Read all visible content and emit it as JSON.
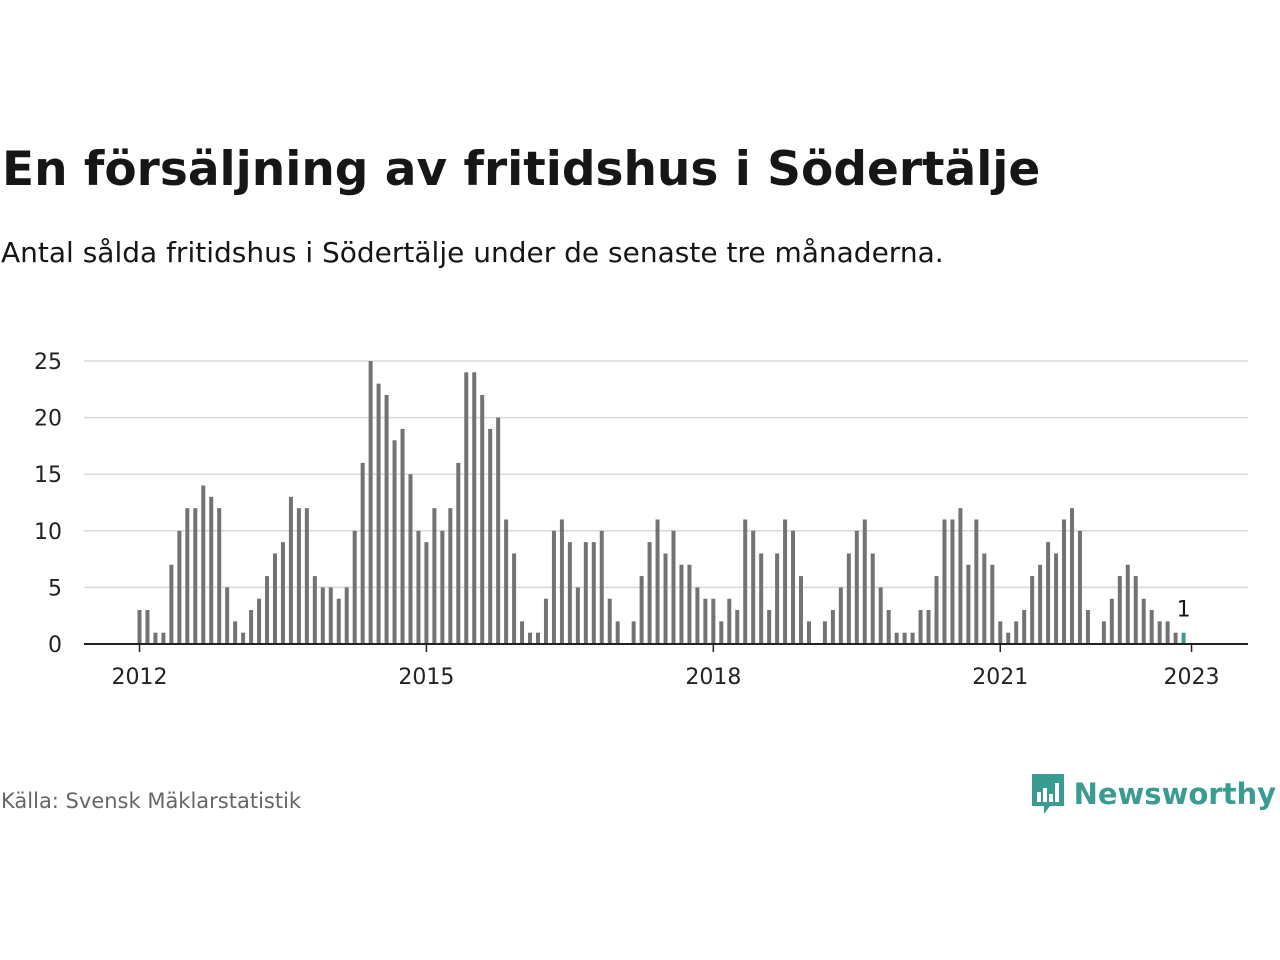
{
  "title": "En försäljning av fritidshus i Södertälje",
  "subtitle": "Antal sålda fritidshus i Södertälje under de senaste tre månaderna.",
  "source": "Källa: Svensk Mäklarstatistik",
  "brand": {
    "name": "Newsworthy",
    "icon": "newsworthy-logo-icon",
    "color": "#3a9b91"
  },
  "chart_data": {
    "type": "bar",
    "title": "",
    "xlabel": "",
    "ylabel": "",
    "ylim": [
      0,
      25
    ],
    "yticks": [
      0,
      5,
      10,
      15,
      20,
      25
    ],
    "x_start": "2012-01",
    "xticks": [
      {
        "label": "2012",
        "month": "2012-01"
      },
      {
        "label": "2015",
        "month": "2015-01"
      },
      {
        "label": "2018",
        "month": "2018-01"
      },
      {
        "label": "2021",
        "month": "2021-01"
      },
      {
        "label": "2023",
        "month": "2023-01"
      }
    ],
    "grid": true,
    "bar_color": "#737373",
    "highlight_color": "#3a9b91",
    "highlight_last": true,
    "last_value_label": "1",
    "values": [
      3,
      3,
      1,
      1,
      7,
      10,
      12,
      12,
      14,
      13,
      12,
      5,
      2,
      1,
      3,
      4,
      6,
      8,
      9,
      13,
      12,
      12,
      6,
      5,
      5,
      4,
      5,
      10,
      16,
      25,
      23,
      22,
      18,
      19,
      15,
      10,
      9,
      12,
      10,
      12,
      16,
      24,
      24,
      22,
      19,
      20,
      11,
      8,
      2,
      1,
      1,
      4,
      10,
      11,
      9,
      5,
      9,
      9,
      10,
      4,
      2,
      0,
      2,
      6,
      9,
      11,
      8,
      10,
      7,
      7,
      5,
      4,
      4,
      2,
      4,
      3,
      11,
      10,
      8,
      3,
      8,
      11,
      10,
      6,
      2,
      0,
      2,
      3,
      5,
      8,
      10,
      11,
      8,
      5,
      3,
      1,
      1,
      1,
      3,
      3,
      6,
      11,
      11,
      12,
      7,
      11,
      8,
      7,
      2,
      1,
      2,
      3,
      6,
      7,
      9,
      8,
      11,
      12,
      10,
      3,
      0,
      2,
      4,
      6,
      7,
      6,
      4,
      3,
      2,
      2,
      1,
      1
    ]
  }
}
